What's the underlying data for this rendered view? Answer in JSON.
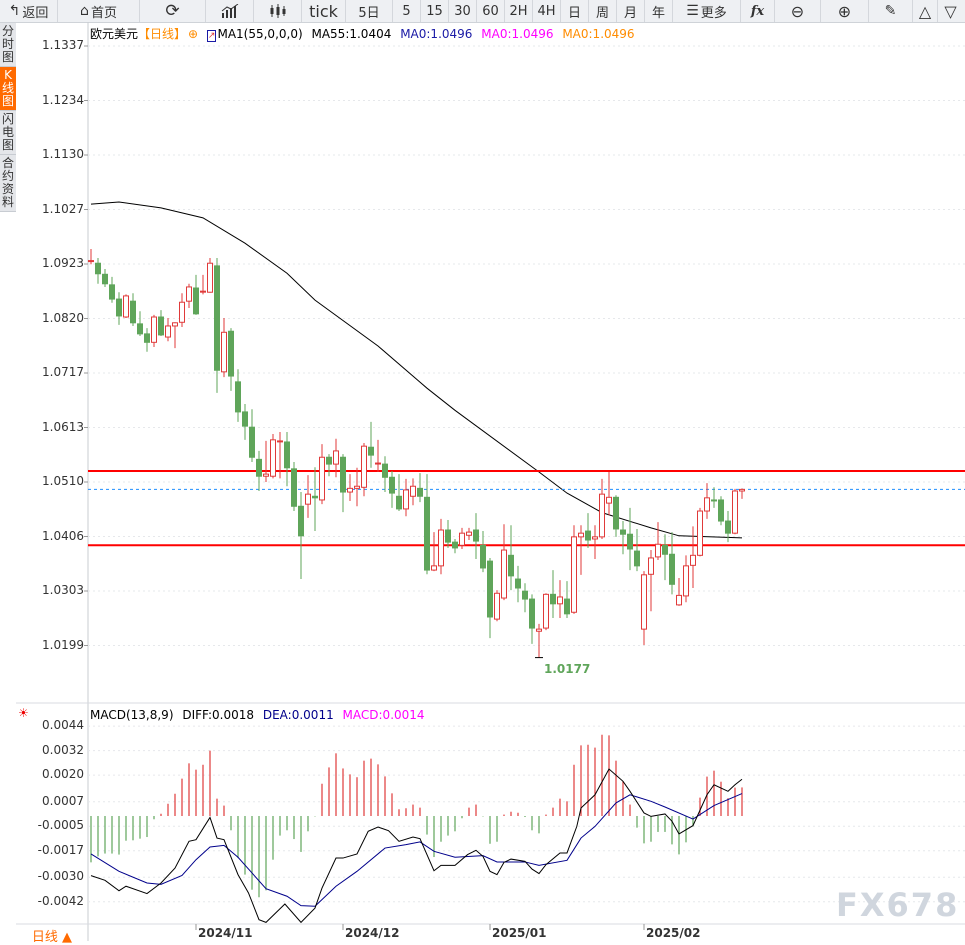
{
  "toolbar": {
    "back": "返回",
    "home": "首页",
    "tick": "tick",
    "five_day": "5日",
    "periods": [
      "5",
      "15",
      "30",
      "60",
      "2H",
      "4H",
      "日",
      "周",
      "月",
      "年"
    ],
    "more": "更多",
    "fx": "fx",
    "icons": [
      "back-arrow-icon",
      "home-icon",
      "refresh-icon",
      "bar-chart-icon",
      "candlestick-icon",
      "menu-icon",
      "function-icon",
      "zoom-out-icon",
      "zoom-in-icon",
      "pencil-icon",
      "triangle-up-icon",
      "triangle-down-icon"
    ]
  },
  "sidebar": {
    "tabs": [
      {
        "label": "分时图",
        "active": false
      },
      {
        "label": "K线图",
        "active": true
      },
      {
        "label": "闪电图",
        "active": false
      },
      {
        "label": "合约资料",
        "active": false
      }
    ]
  },
  "price_panel": {
    "symbol": "欧元美元",
    "period": "【日线】",
    "ma_legend": "MA1(55,0,0,0)",
    "ma55": "MA55:1.0404",
    "ma0_a": "MA0:1.0496",
    "ma0_b": "MA0:1.0496",
    "ma0_c": "MA0:1.0496",
    "y_ticks": [
      "1.1337",
      "1.1234",
      "1.1130",
      "1.1027",
      "1.0923",
      "1.0820",
      "1.0717",
      "1.0613",
      "1.0510",
      "1.0406",
      "1.0303",
      "1.0199"
    ],
    "low_label": "1.0177",
    "colors": {
      "up": "#e03a3a",
      "down": "#5fa55a",
      "ma55": "#000000",
      "hline": "#ff0000",
      "last_price_line": "#1e8fff",
      "ma0_a": "#1a1aa6",
      "ma0_b": "#ff00ff",
      "ma0_c": "#ff8c00"
    }
  },
  "macd_panel": {
    "legend": "MACD(13,8,9)",
    "diff": "DIFF:0.0018",
    "dea": "DEA:0.0011",
    "macd": "MACD:0.0014",
    "y_ticks": [
      "0.0044",
      "0.0032",
      "0.0020",
      "0.0007",
      "-0.0005",
      "-0.0017",
      "-0.0030",
      "-0.0042"
    ],
    "colors": {
      "diff": "#000000",
      "dea": "#00008b",
      "macd": "#ff00ff"
    }
  },
  "x_axis": {
    "labels": [
      "2024/11",
      "2024/12",
      "2025/01",
      "2025/02"
    ]
  },
  "period_button": "日线 ▲",
  "watermark": "FX678",
  "chart_data": {
    "type": "candlestick",
    "ylim": [
      1.0199,
      1.1337
    ],
    "ohlc_fields": [
      "open",
      "high",
      "low",
      "close"
    ],
    "candles": [
      [
        1.093,
        1.0952,
        1.0923,
        1.093
      ],
      [
        1.0925,
        1.0935,
        1.0886,
        1.0905
      ],
      [
        1.0904,
        1.0914,
        1.088,
        1.0886
      ],
      [
        1.0884,
        1.0899,
        1.085,
        1.0857
      ],
      [
        1.0857,
        1.087,
        1.0808,
        1.0825
      ],
      [
        1.0823,
        1.0866,
        1.0821,
        1.0863
      ],
      [
        1.0853,
        1.0868,
        1.0806,
        1.0812
      ],
      [
        1.081,
        1.0834,
        1.0787,
        1.0791
      ],
      [
        1.0791,
        1.0802,
        1.0757,
        1.0775
      ],
      [
        1.0775,
        1.0827,
        1.0766,
        1.0823
      ],
      [
        1.0823,
        1.0836,
        1.0787,
        1.0789
      ],
      [
        1.0785,
        1.0821,
        1.0777,
        1.0806
      ],
      [
        1.0806,
        1.0813,
        1.0764,
        1.0812
      ],
      [
        1.0813,
        1.0868,
        1.0804,
        1.0851
      ],
      [
        1.0853,
        1.0886,
        1.084,
        1.088
      ],
      [
        1.0878,
        1.0903,
        1.0827,
        1.0829
      ],
      [
        1.0872,
        1.0903,
        1.0866,
        1.0872
      ],
      [
        1.087,
        1.0935,
        1.0869,
        1.0925
      ],
      [
        1.092,
        1.0935,
        1.0679,
        1.0722
      ],
      [
        1.0719,
        1.0821,
        1.0709,
        1.0794
      ],
      [
        1.0796,
        1.0802,
        1.0683,
        1.0711
      ],
      [
        1.07,
        1.0724,
        1.0624,
        1.0643
      ],
      [
        1.0643,
        1.0658,
        1.059,
        1.0616
      ],
      [
        1.0614,
        1.0648,
        1.0548,
        1.0557
      ],
      [
        1.0553,
        1.0569,
        1.0493,
        1.0521
      ],
      [
        1.0521,
        1.0588,
        1.051,
        1.0525
      ],
      [
        1.0521,
        1.0601,
        1.0517,
        1.059
      ],
      [
        1.0588,
        1.0605,
        1.0517,
        1.0588
      ],
      [
        1.0586,
        1.0605,
        1.0502,
        1.0537
      ],
      [
        1.0535,
        1.0548,
        1.0455,
        1.0464
      ],
      [
        1.0464,
        1.0491,
        1.0326,
        1.0408
      ],
      [
        1.0468,
        1.0523,
        1.0442,
        1.0487
      ],
      [
        1.0483,
        1.0538,
        1.0417,
        1.048
      ],
      [
        1.0476,
        1.0582,
        1.0468,
        1.0557
      ],
      [
        1.0557,
        1.0563,
        1.0521,
        1.0544
      ],
      [
        1.0544,
        1.0592,
        1.0519,
        1.0569
      ],
      [
        1.0557,
        1.0563,
        1.0453,
        1.0491
      ],
      [
        1.0491,
        1.0525,
        1.0474,
        1.0498
      ],
      [
        1.0498,
        1.0537,
        1.0464,
        1.0502
      ],
      [
        1.05,
        1.0584,
        1.0483,
        1.0578
      ],
      [
        1.0576,
        1.0624,
        1.0537,
        1.0561
      ],
      [
        1.0546,
        1.059,
        1.0529,
        1.0546
      ],
      [
        1.0544,
        1.0559,
        1.0491,
        1.0519
      ],
      [
        1.0519,
        1.0531,
        1.0461,
        1.0489
      ],
      [
        1.0483,
        1.0525,
        1.0455,
        1.0459
      ],
      [
        1.0459,
        1.0516,
        1.0445,
        1.0495
      ],
      [
        1.0483,
        1.0517,
        1.0466,
        1.0502
      ],
      [
        1.0498,
        1.0527,
        1.0472,
        1.0483
      ],
      [
        1.0481,
        1.0525,
        1.0335,
        1.0343
      ],
      [
        1.0343,
        1.0415,
        1.0341,
        1.0351
      ],
      [
        1.0351,
        1.044,
        1.0335,
        1.0419
      ],
      [
        1.0419,
        1.0438,
        1.0385,
        1.0396
      ],
      [
        1.0396,
        1.0402,
        1.0375,
        1.0385
      ],
      [
        1.039,
        1.0423,
        1.0383,
        1.0413
      ],
      [
        1.0409,
        1.0423,
        1.04,
        1.0415
      ],
      [
        1.0419,
        1.0451,
        1.0364,
        1.0398
      ],
      [
        1.039,
        1.0417,
        1.0339,
        1.0347
      ],
      [
        1.036,
        1.0366,
        1.0214,
        1.0254
      ],
      [
        1.025,
        1.0305,
        1.0246,
        1.0299
      ],
      [
        1.029,
        1.043,
        1.0286,
        1.0381
      ],
      [
        1.0371,
        1.0428,
        1.0305,
        1.0332
      ],
      [
        1.0326,
        1.0351,
        1.0282,
        1.0309
      ],
      [
        1.0303,
        1.0318,
        1.0263,
        1.0288
      ],
      [
        1.0288,
        1.0297,
        1.0203,
        1.0233
      ],
      [
        1.0227,
        1.0241,
        1.0177,
        1.0231
      ],
      [
        1.0233,
        1.0299,
        1.0229,
        1.0297
      ],
      [
        1.0297,
        1.0343,
        1.0252,
        1.0279
      ],
      [
        1.0279,
        1.0324,
        1.0252,
        1.0292
      ],
      [
        1.0288,
        1.0322,
        1.0252,
        1.026
      ],
      [
        1.0263,
        1.0428,
        1.026,
        1.0406
      ],
      [
        1.0406,
        1.0428,
        1.0334,
        1.0413
      ],
      [
        1.0417,
        1.0451,
        1.0385,
        1.04
      ],
      [
        1.0402,
        1.0428,
        1.0364,
        1.0406
      ],
      [
        1.0406,
        1.0516,
        1.0402,
        1.0487
      ],
      [
        1.047,
        1.0529,
        1.0447,
        1.0481
      ],
      [
        1.0481,
        1.0485,
        1.0406,
        1.0421
      ],
      [
        1.0419,
        1.0436,
        1.0373,
        1.0411
      ],
      [
        1.0411,
        1.0461,
        1.0343,
        1.0383
      ],
      [
        1.0379,
        1.0421,
        1.0341,
        1.0351
      ],
      [
        1.0231,
        1.0341,
        1.0201,
        1.0334
      ],
      [
        1.0335,
        1.0381,
        1.0265,
        1.0366
      ],
      [
        1.0368,
        1.0434,
        1.0362,
        1.0392
      ],
      [
        1.039,
        1.0411,
        1.0324,
        1.0373
      ],
      [
        1.0373,
        1.0415,
        1.0297,
        1.0316
      ],
      [
        1.0277,
        1.0328,
        1.0275,
        1.0295
      ],
      [
        1.0294,
        1.0371,
        1.0282,
        1.0351
      ],
      [
        1.0352,
        1.0426,
        1.0309,
        1.0371
      ],
      [
        1.0371,
        1.0461,
        1.0369,
        1.0455
      ],
      [
        1.0455,
        1.0508,
        1.044,
        1.048
      ],
      [
        1.0476,
        1.05,
        1.0461,
        1.0475
      ],
      [
        1.0476,
        1.0483,
        1.0428,
        1.0436
      ],
      [
        1.0436,
        1.0455,
        1.0396,
        1.0413
      ],
      [
        1.0413,
        1.0497,
        1.0411,
        1.0493
      ],
      [
        1.0493,
        1.0498,
        1.0478,
        1.0496
      ]
    ],
    "ma55_points": [
      [
        0,
        1.1037
      ],
      [
        4,
        1.1041
      ],
      [
        10,
        1.103
      ],
      [
        16,
        1.1011
      ],
      [
        22,
        1.0963
      ],
      [
        28,
        1.0906
      ],
      [
        32,
        1.0855
      ],
      [
        41,
        1.0768
      ],
      [
        48,
        1.0688
      ],
      [
        52,
        1.0646
      ],
      [
        64,
        1.0529
      ],
      [
        68,
        1.0489
      ],
      [
        73,
        1.0452
      ],
      [
        80,
        1.0423
      ],
      [
        84,
        1.0408
      ],
      [
        93,
        1.0404
      ]
    ],
    "horizontal_lines": [
      1.0531,
      1.039
    ],
    "last_price": 1.0496,
    "low_marker": {
      "index": 64,
      "value": 1.0177
    },
    "x_label_indices": [
      15,
      36,
      57,
      79
    ],
    "macd": {
      "ylim": [
        -0.0046,
        0.0046
      ],
      "histogram": [
        -0.00227,
        -0.00198,
        -0.00184,
        -0.00184,
        -0.00189,
        -0.00121,
        -0.00119,
        -0.00111,
        -0.00103,
        -0.00016,
        0.00011,
        0.0006,
        0.00109,
        0.00183,
        0.00258,
        0.00227,
        0.00251,
        0.0032,
        0.00085,
        0.00051,
        -0.0007,
        -0.00206,
        -0.00287,
        -0.00361,
        -0.00398,
        -0.00364,
        -0.00214,
        -0.00096,
        -0.0007,
        -0.00113,
        -0.00176,
        -0.00075,
        -2e-05,
        0.00158,
        0.00238,
        0.00307,
        0.00233,
        0.00204,
        0.0019,
        0.00271,
        0.00281,
        0.00253,
        0.00194,
        0.00111,
        0.00033,
        0.00038,
        0.00056,
        0.00041,
        -0.00091,
        -0.00201,
        -0.00126,
        -0.00096,
        -0.00075,
        -0.00011,
        0.00041,
        0.00056,
        -2e-05,
        -0.00136,
        -0.00126,
        7e-05,
        0.00021,
        0.00016,
        -5e-05,
        -0.0007,
        -0.00085,
        7e-05,
        0.00041,
        0.00085,
        0.00072,
        0.00251,
        0.00346,
        0.00349,
        0.00335,
        0.00398,
        0.00395,
        0.00271,
        0.0017,
        0.00056,
        -0.00057,
        -0.00134,
        -0.00126,
        -0.00078,
        -0.00078,
        -0.00139,
        -0.00188,
        -0.00129,
        -0.00051,
        0.0009,
        0.00193,
        0.00222,
        0.00168,
        0.00087,
        0.00139,
        0.0014
      ],
      "diff_points": [
        [
          0,
          -0.00292
        ],
        [
          2,
          -0.00315
        ],
        [
          4,
          -0.00366
        ],
        [
          5,
          -0.00344
        ],
        [
          8,
          -0.0038
        ],
        [
          10,
          -0.00328
        ],
        [
          12,
          -0.00255
        ],
        [
          14,
          -0.00124
        ],
        [
          15,
          -0.00116
        ],
        [
          17,
          -7e-05
        ],
        [
          18,
          -0.00108
        ],
        [
          19,
          -0.00116
        ],
        [
          21,
          -0.00287
        ],
        [
          22.5,
          -0.00377
        ],
        [
          24,
          -0.00508
        ],
        [
          25,
          -0.00521
        ],
        [
          27.7,
          -0.00431
        ],
        [
          30,
          -0.00521
        ],
        [
          32,
          -0.00451
        ],
        [
          33,
          -0.00353
        ],
        [
          35,
          -0.00206
        ],
        [
          36,
          -0.00206
        ],
        [
          38,
          -0.00186
        ],
        [
          39.6,
          -0.00075
        ],
        [
          41,
          -0.00054
        ],
        [
          42.5,
          -0.00072
        ],
        [
          44,
          -0.00124
        ],
        [
          46,
          -0.00103
        ],
        [
          47,
          -0.00111
        ],
        [
          49,
          -0.00268
        ],
        [
          50,
          -0.00242
        ],
        [
          52,
          -0.00242
        ],
        [
          53.8,
          -0.00189
        ],
        [
          55,
          -0.00168
        ],
        [
          56,
          -0.00198
        ],
        [
          57,
          -0.00271
        ],
        [
          58,
          -0.00287
        ],
        [
          59,
          -0.00227
        ],
        [
          60,
          -0.00211
        ],
        [
          62,
          -0.00222
        ],
        [
          63,
          -0.0026
        ],
        [
          64,
          -0.00282
        ],
        [
          65,
          -0.00238
        ],
        [
          67,
          -0.00181
        ],
        [
          68,
          -0.00181
        ],
        [
          69.4,
          -0.00051
        ],
        [
          70,
          0.00039
        ],
        [
          72,
          0.00104
        ],
        [
          74,
          0.0023
        ],
        [
          76,
          0.0017
        ],
        [
          77,
          0.00121
        ],
        [
          79,
          0.00015
        ],
        [
          80,
          -2e-05
        ],
        [
          82,
          0.0001
        ],
        [
          83,
          -0.00026
        ],
        [
          84,
          -0.00088
        ],
        [
          86,
          -0.00047
        ],
        [
          88,
          0.00104
        ],
        [
          89,
          0.00153
        ],
        [
          91,
          0.00121
        ],
        [
          92,
          0.00153
        ],
        [
          93,
          0.0018
        ]
      ],
      "dea_points": [
        [
          0,
          -0.00186
        ],
        [
          4,
          -0.00271
        ],
        [
          8,
          -0.00328
        ],
        [
          10,
          -0.00335
        ],
        [
          13,
          -0.00291
        ],
        [
          15,
          -0.00214
        ],
        [
          17,
          -0.00152
        ],
        [
          19,
          -0.00144
        ],
        [
          21,
          -0.00202
        ],
        [
          23,
          -0.00279
        ],
        [
          25,
          -0.00356
        ],
        [
          28,
          -0.00393
        ],
        [
          30,
          -0.00439
        ],
        [
          32,
          -0.00442
        ],
        [
          35,
          -0.00344
        ],
        [
          38,
          -0.00271
        ],
        [
          42,
          -0.00157
        ],
        [
          45,
          -0.0014
        ],
        [
          47,
          -0.00127
        ],
        [
          49,
          -0.00173
        ],
        [
          52,
          -0.00202
        ],
        [
          56,
          -0.00194
        ],
        [
          58,
          -0.00225
        ],
        [
          62,
          -0.00225
        ],
        [
          64,
          -0.00242
        ],
        [
          68,
          -0.00217
        ],
        [
          70,
          -0.00108
        ],
        [
          72,
          -0.00051
        ],
        [
          75,
          0.00064
        ],
        [
          77,
          0.00104
        ],
        [
          80,
          0.00072
        ],
        [
          82,
          0.00044
        ],
        [
          86,
          -0.00015
        ],
        [
          89,
          0.00051
        ],
        [
          93,
          0.0011
        ]
      ]
    }
  }
}
